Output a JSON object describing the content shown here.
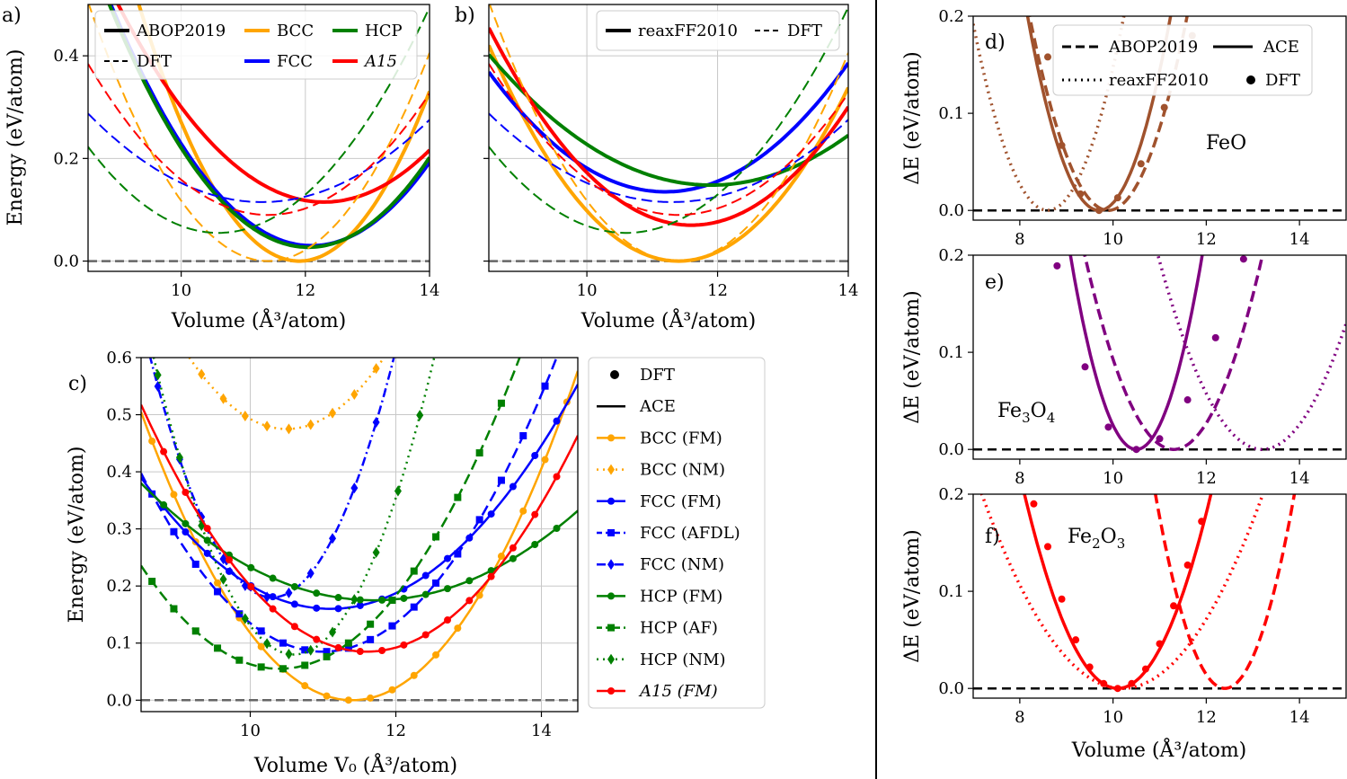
{
  "chart_data": [
    {
      "panel": "a)",
      "type": "line",
      "xlabel": "Volume (Å³/atom)",
      "ylabel": "Energy (eV/atom)",
      "xlim": [
        8.5,
        14
      ],
      "ylim": [
        -0.02,
        0.5
      ],
      "xticks": [
        10,
        12,
        14
      ],
      "yticks": [
        0.0,
        0.2,
        0.4
      ],
      "grid": true,
      "legend": {
        "position": "top",
        "entries": [
          "ABOP2019",
          "DFT",
          "BCC",
          "FCC",
          "HCP",
          "A15"
        ]
      },
      "series": [
        {
          "name": "BCC",
          "method": "ABOP2019",
          "color": "#ffa500",
          "style": "solid",
          "v0": 11.9,
          "e0": 0.0,
          "k": 0.075
        },
        {
          "name": "FCC",
          "method": "ABOP2019",
          "color": "#0000ff",
          "style": "solid",
          "v0": 12.1,
          "e0": 0.03,
          "k": 0.045
        },
        {
          "name": "HCP",
          "method": "ABOP2019",
          "color": "#008000",
          "style": "solid",
          "v0": 12.05,
          "e0": 0.027,
          "k": 0.046
        },
        {
          "name": "A15",
          "method": "ABOP2019",
          "color": "#ff0000",
          "style": "solid",
          "v0": 12.3,
          "e0": 0.115,
          "k": 0.035
        },
        {
          "name": "BCC",
          "method": "DFT",
          "color": "#ffa500",
          "style": "dashed",
          "v0": 11.4,
          "e0": 0.0,
          "k": 0.06
        },
        {
          "name": "FCC",
          "method": "DFT",
          "color": "#0000ff",
          "style": "dashed",
          "v0": 11.3,
          "e0": 0.115,
          "k": 0.022
        },
        {
          "name": "HCP",
          "method": "DFT",
          "color": "#008000",
          "style": "dashed",
          "v0": 10.6,
          "e0": 0.055,
          "k": 0.038
        },
        {
          "name": "A15",
          "method": "DFT",
          "color": "#ff0000",
          "style": "dashed",
          "v0": 11.4,
          "e0": 0.09,
          "k": 0.035
        }
      ]
    },
    {
      "panel": "b)",
      "type": "line",
      "xlabel": "Volume (Å³/atom)",
      "ylabel": "",
      "xlim": [
        8.5,
        14
      ],
      "ylim": [
        -0.02,
        0.5
      ],
      "xticks": [
        10,
        12,
        14
      ],
      "yticks": [
        0.0,
        0.2,
        0.4
      ],
      "grid": true,
      "legend": {
        "position": "top-right",
        "entries": [
          "reaxFF2010",
          "DFT"
        ]
      },
      "series": [
        {
          "name": "BCC",
          "method": "reaxFF2010",
          "color": "#ffa500",
          "style": "solid",
          "v0": 11.4,
          "e0": 0.0,
          "k": 0.05
        },
        {
          "name": "FCC",
          "method": "reaxFF2010",
          "color": "#0000ff",
          "style": "solid",
          "v0": 11.2,
          "e0": 0.135,
          "k": 0.032
        },
        {
          "name": "HCP",
          "method": "reaxFF2010",
          "color": "#008000",
          "style": "solid",
          "v0": 11.9,
          "e0": 0.148,
          "k": 0.022
        },
        {
          "name": "A15",
          "method": "reaxFF2010",
          "color": "#ff0000",
          "style": "solid",
          "v0": 11.6,
          "e0": 0.07,
          "k": 0.04
        },
        {
          "name": "BCC",
          "method": "DFT",
          "color": "#ffa500",
          "style": "dashed",
          "v0": 11.4,
          "e0": 0.0,
          "k": 0.06
        },
        {
          "name": "FCC",
          "method": "DFT",
          "color": "#0000ff",
          "style": "dashed",
          "v0": 11.3,
          "e0": 0.115,
          "k": 0.022
        },
        {
          "name": "HCP",
          "method": "DFT",
          "color": "#008000",
          "style": "dashed",
          "v0": 10.6,
          "e0": 0.055,
          "k": 0.038
        },
        {
          "name": "A15",
          "method": "DFT",
          "color": "#ff0000",
          "style": "dashed",
          "v0": 11.4,
          "e0": 0.09,
          "k": 0.035
        }
      ]
    },
    {
      "panel": "c)",
      "type": "line",
      "xlabel": "Volume V₀ (Å³/atom)",
      "ylabel": "Energy (eV/atom)",
      "xlim": [
        8.5,
        14.5
      ],
      "ylim": [
        -0.02,
        0.6
      ],
      "xticks": [
        10,
        12,
        14
      ],
      "yticks": [
        0.0,
        0.1,
        0.2,
        0.3,
        0.4,
        0.5,
        0.6
      ],
      "grid": true,
      "legend": {
        "position": "right-outside",
        "entries": [
          "DFT",
          "ACE",
          "BCC (FM)",
          "BCC (NM)",
          "FCC (FM)",
          "FCC (AFDL)",
          "FCC (NM)",
          "HCP (FM)",
          "HCP (AF)",
          "HCP (NM)",
          "A15 (FM)"
        ]
      },
      "series": [
        {
          "name": "BCC (FM)",
          "color": "#ffa500",
          "style": "solid",
          "marker": "circle",
          "v0": 11.4,
          "e0": 0.0,
          "k": 0.06
        },
        {
          "name": "BCC (NM)",
          "color": "#ffa500",
          "style": "dotted",
          "marker": "diamond",
          "v0": 10.5,
          "e0": 0.475,
          "k": 0.07
        },
        {
          "name": "FCC (FM)",
          "color": "#0000ff",
          "style": "solid",
          "marker": "circle",
          "v0": 11.1,
          "e0": 0.16,
          "k": 0.034
        },
        {
          "name": "FCC (AFDL)",
          "color": "#0000ff",
          "style": "dashed",
          "marker": "square",
          "v0": 11.0,
          "e0": 0.085,
          "k": 0.05
        },
        {
          "name": "FCC (NM)",
          "color": "#0000ff",
          "style": "dashdot",
          "marker": "diamond",
          "v0": 10.3,
          "e0": 0.18,
          "k": 0.15
        },
        {
          "name": "HCP (FM)",
          "color": "#008000",
          "style": "solid",
          "marker": "circle",
          "v0": 11.7,
          "e0": 0.175,
          "k": 0.02
        },
        {
          "name": "HCP (AF)",
          "color": "#008000",
          "style": "dashed",
          "marker": "square",
          "v0": 10.4,
          "e0": 0.055,
          "k": 0.05
        },
        {
          "name": "HCP (NM)",
          "color": "#008000",
          "style": "dotted",
          "marker": "diamond",
          "v0": 10.6,
          "e0": 0.08,
          "k": 0.14
        },
        {
          "name": "A15 (FM)",
          "color": "#ff0000",
          "style": "solid",
          "marker": "circle",
          "v0": 11.6,
          "e0": 0.085,
          "k": 0.045
        }
      ]
    },
    {
      "panel": "d)",
      "type": "line",
      "material": "FeO",
      "color": "#a0522d",
      "xlabel": "",
      "ylabel": "ΔE (eV/atom)",
      "xlim": [
        7,
        15
      ],
      "ylim": [
        -0.01,
        0.2
      ],
      "xticks": [
        8,
        10,
        12,
        14
      ],
      "yticks": [
        0.0,
        0.1,
        0.2
      ],
      "legend": {
        "position": "top-right",
        "entries": [
          "ABOP2019",
          "ACE",
          "reaxFF2010",
          "DFT"
        ]
      },
      "series": [
        {
          "name": "ACE",
          "style": "solid",
          "v0": 9.7,
          "k": 0.085
        },
        {
          "name": "ABOP2019",
          "style": "dashed",
          "v0": 9.9,
          "k": 0.07
        },
        {
          "name": "reaxFF2010",
          "style": "dotted",
          "v0": 8.6,
          "k": 0.075
        },
        {
          "name": "DFT",
          "style": "markers",
          "v": [
            8.6,
            8.9,
            9.3,
            9.7,
            10.1,
            10.6,
            11.1,
            11.7
          ],
          "e": [
            0.158,
            0.067,
            0.017,
            0.0,
            0.013,
            0.048,
            0.106,
            0.18
          ]
        }
      ]
    },
    {
      "panel": "e)",
      "type": "line",
      "material": "Fe₃O₄",
      "color": "#800080",
      "xlabel": "",
      "ylabel": "ΔE (eV/atom)",
      "xlim": [
        7,
        15
      ],
      "ylim": [
        -0.01,
        0.2
      ],
      "xticks": [
        8,
        10,
        12,
        14
      ],
      "yticks": [
        0.0,
        0.1,
        0.2
      ],
      "series": [
        {
          "name": "ACE",
          "style": "solid",
          "v0": 10.5,
          "k": 0.1
        },
        {
          "name": "ABOP2019",
          "style": "dashed",
          "v0": 11.3,
          "k": 0.055
        },
        {
          "name": "reaxFF2010",
          "style": "dotted",
          "v0": 13.2,
          "k": 0.04
        },
        {
          "name": "DFT",
          "style": "markers",
          "v": [
            8.8,
            9.4,
            9.9,
            10.5,
            11.0,
            11.6,
            12.2,
            12.8
          ],
          "e": [
            0.189,
            0.085,
            0.023,
            0.0,
            0.011,
            0.051,
            0.115,
            0.196
          ]
        }
      ]
    },
    {
      "panel": "f)",
      "type": "line",
      "material": "Fe₂O₃",
      "color": "#ff0000",
      "xlabel": "Volume (Å³/atom)",
      "ylabel": "ΔE (eV/atom)",
      "xlim": [
        7,
        15
      ],
      "ylim": [
        -0.01,
        0.2
      ],
      "xticks": [
        8,
        10,
        12,
        14
      ],
      "yticks": [
        0.0,
        0.1,
        0.2
      ],
      "series": [
        {
          "name": "ACE",
          "style": "solid",
          "v0": 10.1,
          "k": 0.05
        },
        {
          "name": "ABOP2019",
          "style": "dashed",
          "v0": 12.4,
          "k": 0.09
        },
        {
          "name": "reaxFF2010",
          "style": "dotted",
          "v0": 10.2,
          "k": 0.022
        },
        {
          "name": "DFT",
          "style": "markers",
          "v": [
            8.3,
            8.6,
            8.9,
            9.2,
            9.5,
            9.8,
            10.1,
            10.4,
            10.7,
            11.0,
            11.3,
            11.6,
            11.9
          ],
          "e": [
            0.19,
            0.146,
            0.092,
            0.05,
            0.022,
            0.005,
            0.0,
            0.005,
            0.02,
            0.046,
            0.085,
            0.127,
            0.172
          ]
        }
      ]
    }
  ],
  "labels": {
    "a": "a)",
    "b": "b)",
    "c": "c)",
    "d": "d)",
    "e": "e)",
    "f": "f)",
    "feo": "FeO",
    "fe3o4_base": "Fe",
    "fe3o4_sub1": "3",
    "fe3o4_mid": "O",
    "fe3o4_sub2": "4",
    "fe2o3_base": "Fe",
    "fe2o3_sub1": "2",
    "fe2o3_mid": "O",
    "fe2o3_sub2": "3"
  }
}
